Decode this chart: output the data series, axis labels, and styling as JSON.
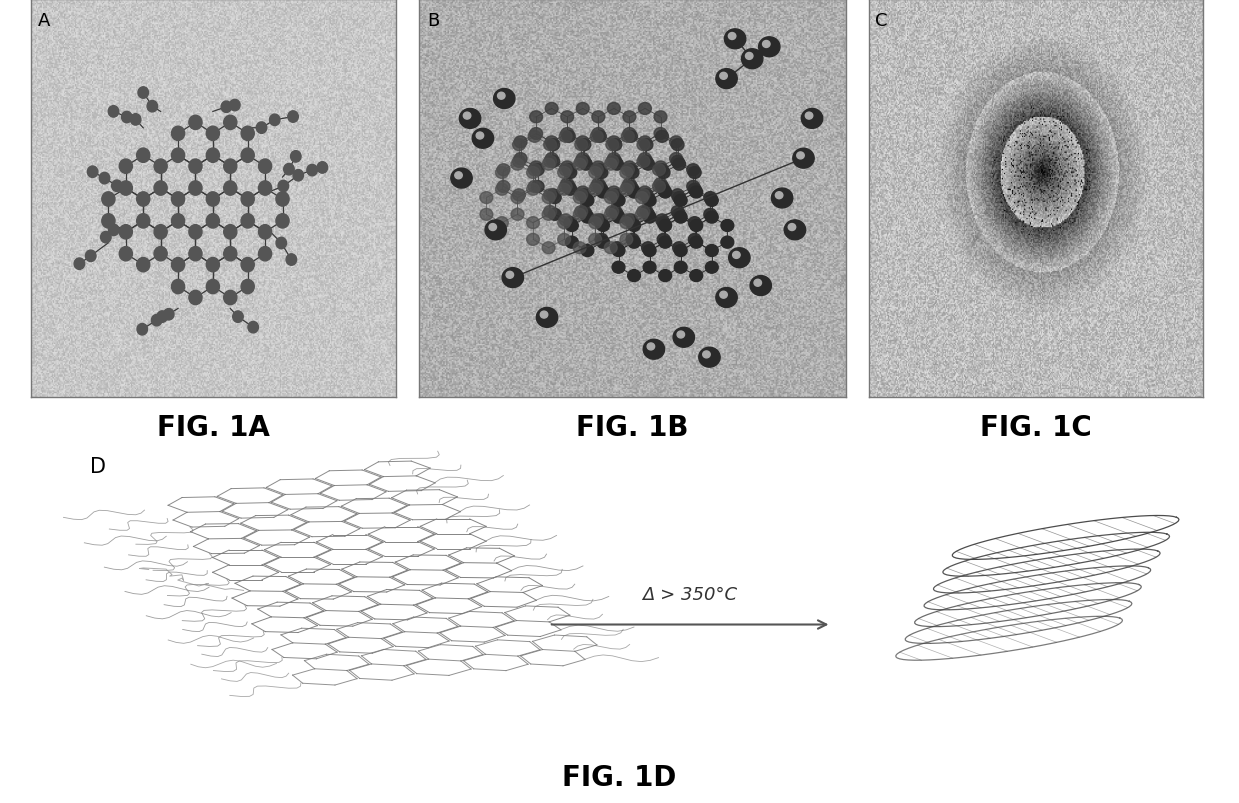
{
  "figure_width": 12.39,
  "figure_height": 8.04,
  "background_color": "#ffffff",
  "panel_labels": [
    "A",
    "B",
    "C",
    "D"
  ],
  "fig_labels": [
    "FIG. 1A",
    "FIG. 1B",
    "FIG. 1C",
    "FIG. 1D"
  ],
  "arrow_label": "Δ > 350°C",
  "label_fontsize": 20,
  "panel_letter_fontsize": 13,
  "arrow_fontsize": 13
}
